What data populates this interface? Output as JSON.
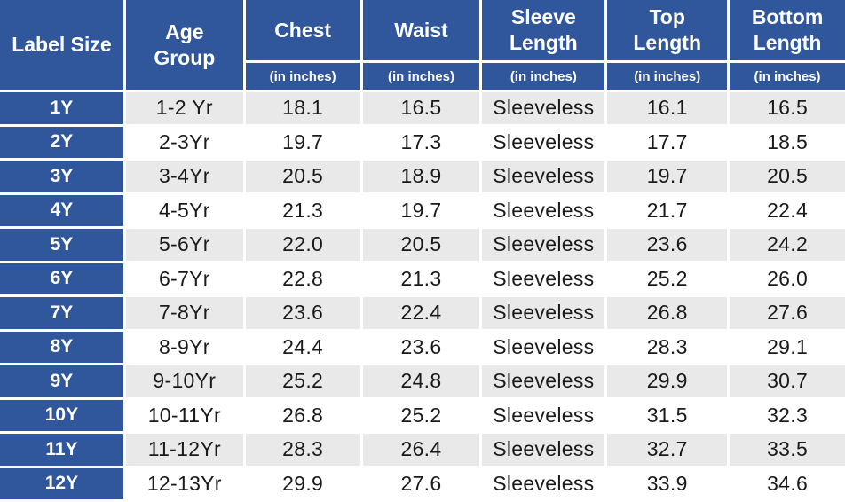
{
  "table": {
    "columns": [
      {
        "label": "Label Size",
        "sub": ""
      },
      {
        "label": "Age\nGroup",
        "sub": ""
      },
      {
        "label": "Chest",
        "sub": "(in inches)"
      },
      {
        "label": "Waist",
        "sub": "(in inches)"
      },
      {
        "label": "Sleeve\nLength",
        "sub": "(in inches)"
      },
      {
        "label": "Top\nLength",
        "sub": "(in inches)"
      },
      {
        "label": "Bottom\nLength",
        "sub": "(in inches)"
      }
    ],
    "rows": [
      {
        "label_size": "1Y",
        "age_group": "1-2 Yr",
        "chest": "18.1",
        "waist": "16.5",
        "sleeve_length": "Sleeveless",
        "top_length": "16.1",
        "bottom_length": "16.5"
      },
      {
        "label_size": "2Y",
        "age_group": "2-3Yr",
        "chest": "19.7",
        "waist": "17.3",
        "sleeve_length": "Sleeveless",
        "top_length": "17.7",
        "bottom_length": "18.5"
      },
      {
        "label_size": "3Y",
        "age_group": "3-4Yr",
        "chest": "20.5",
        "waist": "18.9",
        "sleeve_length": "Sleeveless",
        "top_length": "19.7",
        "bottom_length": "20.5"
      },
      {
        "label_size": "4Y",
        "age_group": "4-5Yr",
        "chest": "21.3",
        "waist": "19.7",
        "sleeve_length": "Sleeveless",
        "top_length": "21.7",
        "bottom_length": "22.4"
      },
      {
        "label_size": "5Y",
        "age_group": "5-6Yr",
        "chest": "22.0",
        "waist": "20.5",
        "sleeve_length": "Sleeveless",
        "top_length": "23.6",
        "bottom_length": "24.2"
      },
      {
        "label_size": "6Y",
        "age_group": "6-7Yr",
        "chest": "22.8",
        "waist": "21.3",
        "sleeve_length": "Sleeveless",
        "top_length": "25.2",
        "bottom_length": "26.0"
      },
      {
        "label_size": "7Y",
        "age_group": "7-8Yr",
        "chest": "23.6",
        "waist": "22.4",
        "sleeve_length": "Sleeveless",
        "top_length": "26.8",
        "bottom_length": "27.6"
      },
      {
        "label_size": "8Y",
        "age_group": "8-9Yr",
        "chest": "24.4",
        "waist": "23.6",
        "sleeve_length": "Sleeveless",
        "top_length": "28.3",
        "bottom_length": "29.1"
      },
      {
        "label_size": "9Y",
        "age_group": "9-10Yr",
        "chest": "25.2",
        "waist": "24.8",
        "sleeve_length": "Sleeveless",
        "top_length": "29.9",
        "bottom_length": "30.7"
      },
      {
        "label_size": "10Y",
        "age_group": "10-11Yr",
        "chest": "26.8",
        "waist": "25.2",
        "sleeve_length": "Sleeveless",
        "top_length": "31.5",
        "bottom_length": "32.3"
      },
      {
        "label_size": "11Y",
        "age_group": "11-12Yr",
        "chest": "28.3",
        "waist": "26.4",
        "sleeve_length": "Sleeveless",
        "top_length": "32.7",
        "bottom_length": "33.5"
      },
      {
        "label_size": "12Y",
        "age_group": "12-13Yr",
        "chest": "29.9",
        "waist": "27.6",
        "sleeve_length": "Sleeveless",
        "top_length": "33.9",
        "bottom_length": "34.6"
      }
    ]
  },
  "colors": {
    "header_blue": "#30569B",
    "row_gray": "#E9E9E9",
    "row_white": "#FFFFFF",
    "grid_white": "#FFFFFF",
    "text_dark": "#1A1A1A",
    "header_text": "#FFFFFF"
  },
  "chart_data": {
    "type": "table",
    "columns": [
      "Label Size",
      "Age Group",
      "Chest (in inches)",
      "Waist (in inches)",
      "Sleeve Length (in inches)",
      "Top Length (in inches)",
      "Bottom Length (in inches)"
    ],
    "rows": [
      [
        "1Y",
        "1-2 Yr",
        18.1,
        16.5,
        "Sleeveless",
        16.1,
        16.5
      ],
      [
        "2Y",
        "2-3Yr",
        19.7,
        17.3,
        "Sleeveless",
        17.7,
        18.5
      ],
      [
        "3Y",
        "3-4Yr",
        20.5,
        18.9,
        "Sleeveless",
        19.7,
        20.5
      ],
      [
        "4Y",
        "4-5Yr",
        21.3,
        19.7,
        "Sleeveless",
        21.7,
        22.4
      ],
      [
        "5Y",
        "5-6Yr",
        22.0,
        20.5,
        "Sleeveless",
        23.6,
        24.2
      ],
      [
        "6Y",
        "6-7Yr",
        22.8,
        21.3,
        "Sleeveless",
        25.2,
        26.0
      ],
      [
        "7Y",
        "7-8Yr",
        23.6,
        22.4,
        "Sleeveless",
        26.8,
        27.6
      ],
      [
        "8Y",
        "8-9Yr",
        24.4,
        23.6,
        "Sleeveless",
        28.3,
        29.1
      ],
      [
        "9Y",
        "9-10Yr",
        25.2,
        24.8,
        "Sleeveless",
        29.9,
        30.7
      ],
      [
        "10Y",
        "10-11Yr",
        26.8,
        25.2,
        "Sleeveless",
        31.5,
        32.3
      ],
      [
        "11Y",
        "11-12Yr",
        28.3,
        26.4,
        "Sleeveless",
        32.7,
        33.5
      ],
      [
        "12Y",
        "12-13Yr",
        29.9,
        27.6,
        "Sleeveless",
        33.9,
        34.6
      ]
    ]
  }
}
